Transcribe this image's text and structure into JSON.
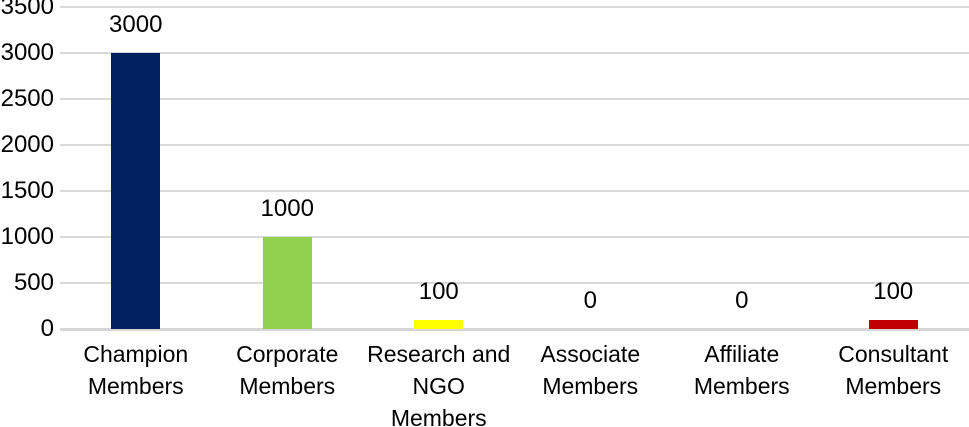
{
  "chart_data": {
    "type": "bar",
    "title": "",
    "xlabel": "",
    "ylabel": "",
    "categories": [
      "Champion Members",
      "Corporate Members",
      "Research and NGO Members",
      "Associate Members",
      "Affiliate Members",
      "Consultant Members"
    ],
    "values": [
      3000,
      1000,
      100,
      0,
      0,
      100
    ],
    "data_labels": [
      "3000",
      "1000",
      "100",
      "0",
      "0",
      "100"
    ],
    "bar_colors": [
      "#002060",
      "#92d050",
      "#ffff00",
      null,
      null,
      "#c00000"
    ],
    "ylim": [
      0,
      3500
    ],
    "ytick_step": 500,
    "ytick_labels": [
      "0",
      "500",
      "1000",
      "1500",
      "2000",
      "2500",
      "3000",
      "3500"
    ],
    "grid": true,
    "legend": false,
    "data_labels_shown": true
  },
  "style_colors": {
    "background": "#ffffff",
    "text": "#000000",
    "gridline": "#d9d9d9",
    "axis_line": "#d6d6d6"
  }
}
